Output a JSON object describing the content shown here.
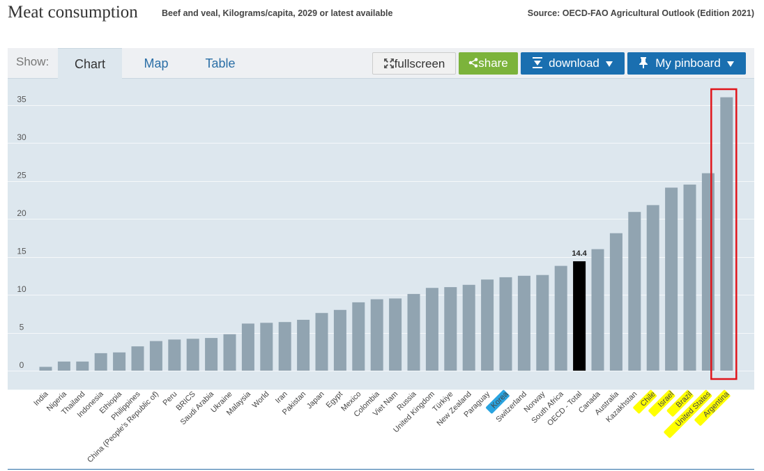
{
  "header": {
    "title": "Meat consumption",
    "subtitle": "Beef and veal, Kilograms/capita, 2029 or latest available",
    "source": "Source: OECD-FAO Agricultural Outlook (Edition 2021)"
  },
  "toolbar": {
    "show_label": "Show:",
    "tabs": [
      {
        "label": "Chart",
        "active": true
      },
      {
        "label": "Map",
        "active": false
      },
      {
        "label": "Table",
        "active": false
      }
    ],
    "fullscreen_label": "fullscreen",
    "share_label": "share",
    "download_label": "download",
    "pinboard_label": "My pinboard",
    "fullscreen_icon": "expand-arrows-icon",
    "share_icon": "share-icon",
    "download_icon": "download-arrow-icon",
    "pinboard_icon": "pushpin-icon",
    "dropdown_icon": "caret-down-icon",
    "colors": {
      "share": "#7cb33b",
      "download": "#1a6fb0",
      "pinboard": "#1a6fb0"
    }
  },
  "chart_data": {
    "type": "bar",
    "categories": [
      "India",
      "Nigeria",
      "Thailand",
      "Indonesia",
      "Ethiopia",
      "Philippines",
      "China (People's Republic of)",
      "Peru",
      "BRICS",
      "Saudi Arabia",
      "Ukraine",
      "Malaysia",
      "World",
      "Iran",
      "Pakistan",
      "Japan",
      "Egypt",
      "Mexico",
      "Colombia",
      "Viet Nam",
      "Russia",
      "United Kingdom",
      "Türkiye",
      "New Zealand",
      "Paraguay",
      "Korea",
      "Switzerland",
      "Norway",
      "South Africa",
      "OECD - Total",
      "Canada",
      "Australia",
      "Kazakhstan",
      "Chile",
      "Israel",
      "Brazil",
      "United States",
      "Argentina"
    ],
    "values": [
      0.5,
      1.2,
      1.2,
      2.3,
      2.4,
      3.2,
      3.9,
      4.1,
      4.2,
      4.3,
      4.8,
      6.2,
      6.3,
      6.4,
      6.7,
      7.6,
      8.0,
      9.0,
      9.4,
      9.5,
      10.1,
      10.9,
      11.0,
      11.3,
      12.0,
      12.3,
      12.5,
      12.6,
      13.8,
      14.4,
      16.0,
      18.1,
      20.9,
      21.8,
      24.1,
      24.5,
      26.0,
      36.0
    ],
    "highlight": {
      "category": "OECD - Total",
      "label": "14.4",
      "color": "#000000"
    },
    "bar_color": "#91a4b1",
    "y_ticks": [
      "0",
      "5",
      "10",
      "15",
      "20",
      "25",
      "30",
      "35"
    ],
    "ylim": [
      0,
      36
    ],
    "grid": true,
    "annotations": {
      "yellow_highlighted": [
        "Chile",
        "Israel",
        "Brazil",
        "United States",
        "Argentina"
      ],
      "blue_highlighted": [
        "Korea"
      ],
      "boxed": [
        "Argentina"
      ],
      "highlight_colors": {
        "yellow": "#ffff00",
        "blue": "#2aa4e0",
        "box": "#e0151b"
      }
    }
  }
}
